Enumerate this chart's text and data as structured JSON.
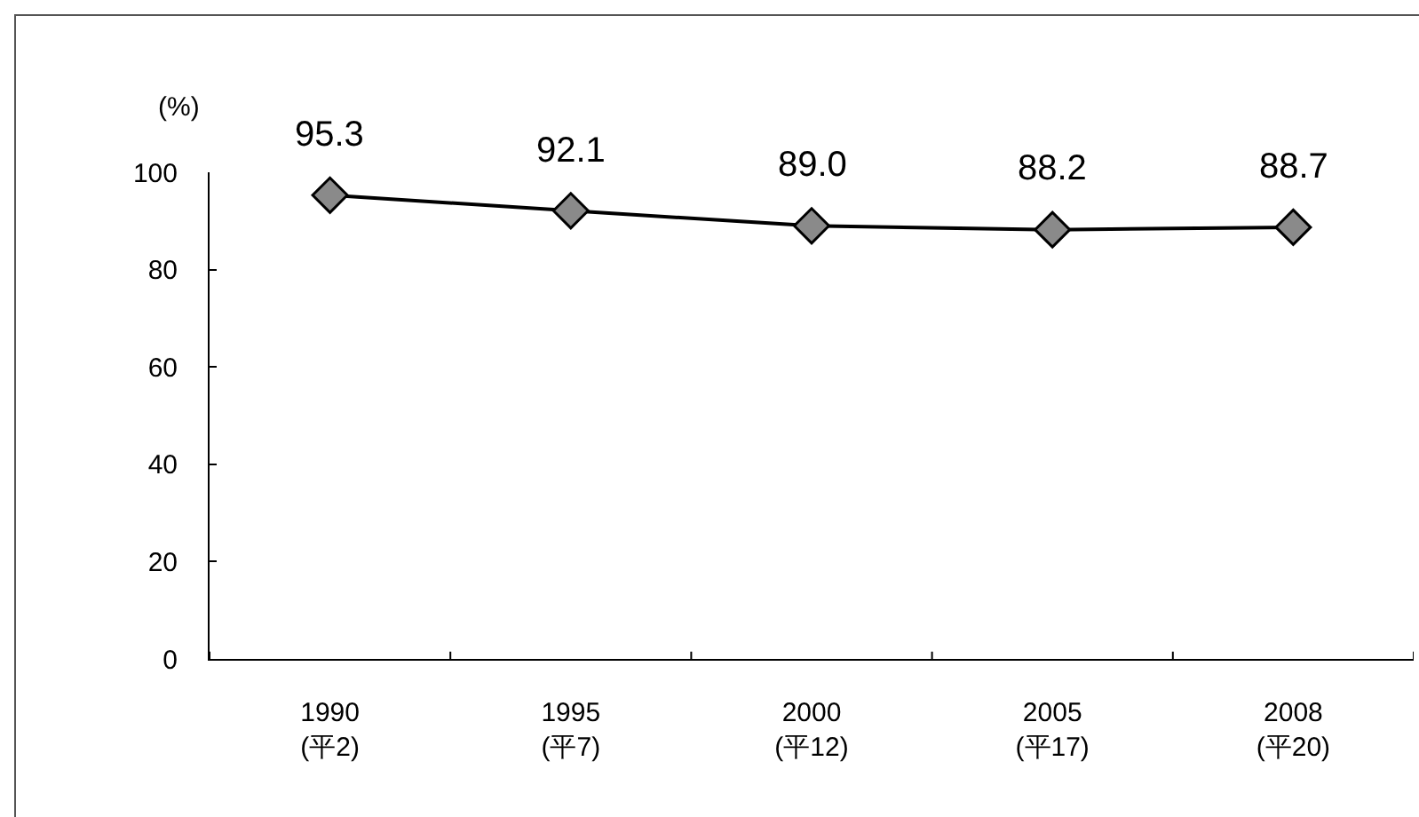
{
  "chart_data": {
    "type": "line",
    "ylabel": "(%)",
    "categories": [
      "1990\n(平2)",
      "1995\n(平7)",
      "2000\n(平12)",
      "2005\n(平17)",
      "2008\n(平20)"
    ],
    "values": [
      95.3,
      92.1,
      89.0,
      88.2,
      88.7
    ],
    "value_labels": [
      "95.3",
      "92.1",
      "89.0",
      "88.2",
      "88.7"
    ],
    "color": "#000000",
    "ylim": [
      0,
      100
    ],
    "yticks": [
      0,
      20,
      40,
      60,
      80,
      100
    ],
    "grid": false,
    "marker": "diamond",
    "line_style": "solid"
  }
}
